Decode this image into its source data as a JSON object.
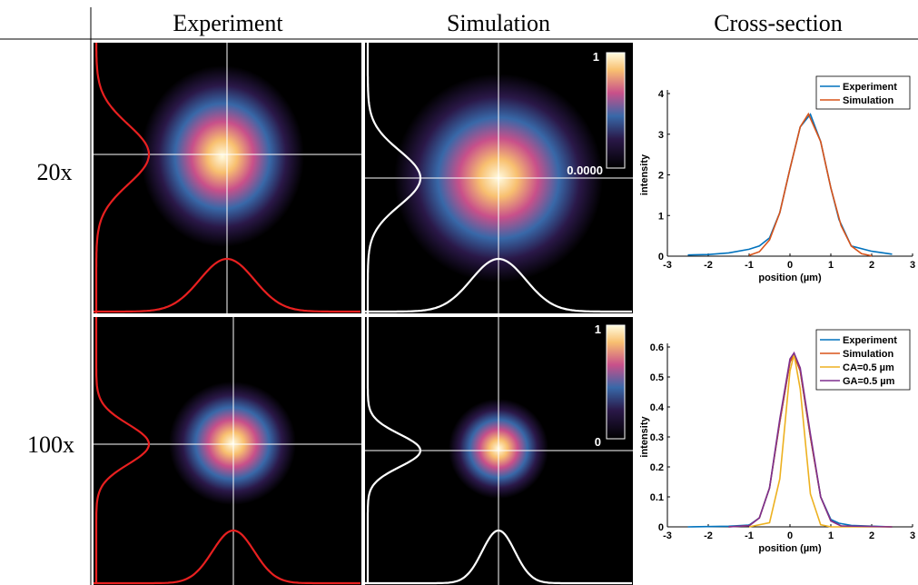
{
  "table": {
    "headers": [
      "Experiment",
      "Simulation",
      "Cross-section"
    ],
    "row_labels": [
      "20x",
      "100x"
    ]
  },
  "colorbars": [
    {
      "max": "1",
      "min": "0.0000"
    },
    {
      "max": "1",
      "min": "0"
    }
  ],
  "chart_data": [
    {
      "type": "line",
      "x_label": "position (µm)",
      "y_label": "intensity",
      "xlim": [
        -3,
        3
      ],
      "xticks": [
        -3,
        -2,
        -1,
        0,
        1,
        2,
        3
      ],
      "ylim": [
        0,
        4
      ],
      "yticks": [
        0,
        1,
        2,
        3,
        4
      ],
      "legend": "upper right",
      "series": [
        {
          "name": "Experiment",
          "color": "#0072bd",
          "x": [
            -2.5,
            -2,
            -1.5,
            -1,
            -0.75,
            -0.5,
            -0.25,
            0,
            0.25,
            0.5,
            0.75,
            1,
            1.2,
            1.5,
            2,
            2.5
          ],
          "values": [
            0.03,
            0.04,
            0.08,
            0.17,
            0.25,
            0.45,
            1.07,
            2.15,
            3.18,
            3.49,
            2.82,
            1.68,
            0.9,
            0.25,
            0.12,
            0.05
          ]
        },
        {
          "name": "Simulation",
          "color": "#d95319",
          "x": [
            -1,
            -0.75,
            -0.5,
            -0.25,
            0,
            0.25,
            0.45,
            0.75,
            1,
            1.25,
            1.5,
            1.75,
            2
          ],
          "values": [
            0.02,
            0.11,
            0.4,
            1.07,
            2.15,
            3.18,
            3.5,
            2.82,
            1.68,
            0.75,
            0.25,
            0.06,
            0.01
          ]
        }
      ]
    },
    {
      "type": "line",
      "x_label": "position (µm)",
      "y_label": "intensity",
      "xlim": [
        -3,
        3
      ],
      "xticks": [
        -3,
        -2,
        -1,
        0,
        1,
        2,
        3
      ],
      "ylim": [
        0,
        0.6
      ],
      "yticks": [
        0,
        0.1,
        0.2,
        0.3,
        0.4,
        0.5,
        0.6
      ],
      "legend": "upper right",
      "series": [
        {
          "name": "Experiment",
          "color": "#0072bd",
          "x": [
            -2.5,
            -1.5,
            -1,
            -0.75,
            -0.5,
            -0.25,
            0,
            0.1,
            0.25,
            0.5,
            0.75,
            1,
            1.2,
            1.5,
            2.5
          ],
          "values": [
            0.0,
            0.002,
            0.006,
            0.03,
            0.13,
            0.35,
            0.55,
            0.575,
            0.52,
            0.3,
            0.1,
            0.025,
            0.012,
            0.005,
            0.0
          ]
        },
        {
          "name": "Simulation",
          "color": "#d95319",
          "x": [
            -1.5,
            -1,
            -0.75,
            -0.5,
            -0.25,
            0,
            0.1,
            0.25,
            0.5,
            0.75,
            1,
            1.25,
            2.5
          ],
          "values": [
            0.0,
            0.004,
            0.03,
            0.13,
            0.35,
            0.55,
            0.575,
            0.52,
            0.3,
            0.1,
            0.02,
            0.003,
            0.0
          ]
        },
        {
          "name": "CA=0.5 µm",
          "color": "#edb120",
          "x": [
            -1,
            -0.5,
            -0.25,
            0,
            0.1,
            0.25,
            0.5,
            0.75,
            1,
            2.5
          ],
          "values": [
            0.0,
            0.014,
            0.16,
            0.52,
            0.575,
            0.46,
            0.11,
            0.007,
            0.0,
            0.0
          ]
        },
        {
          "name": "GA=0.5 µm",
          "color": "#7e2f8e",
          "x": [
            -1.5,
            -1,
            -0.75,
            -0.5,
            -0.25,
            0,
            0.1,
            0.25,
            0.5,
            0.75,
            1,
            1.25,
            2.5
          ],
          "values": [
            0.0,
            0.004,
            0.03,
            0.13,
            0.36,
            0.56,
            0.58,
            0.53,
            0.31,
            0.1,
            0.02,
            0.003,
            0.0
          ]
        }
      ]
    }
  ]
}
